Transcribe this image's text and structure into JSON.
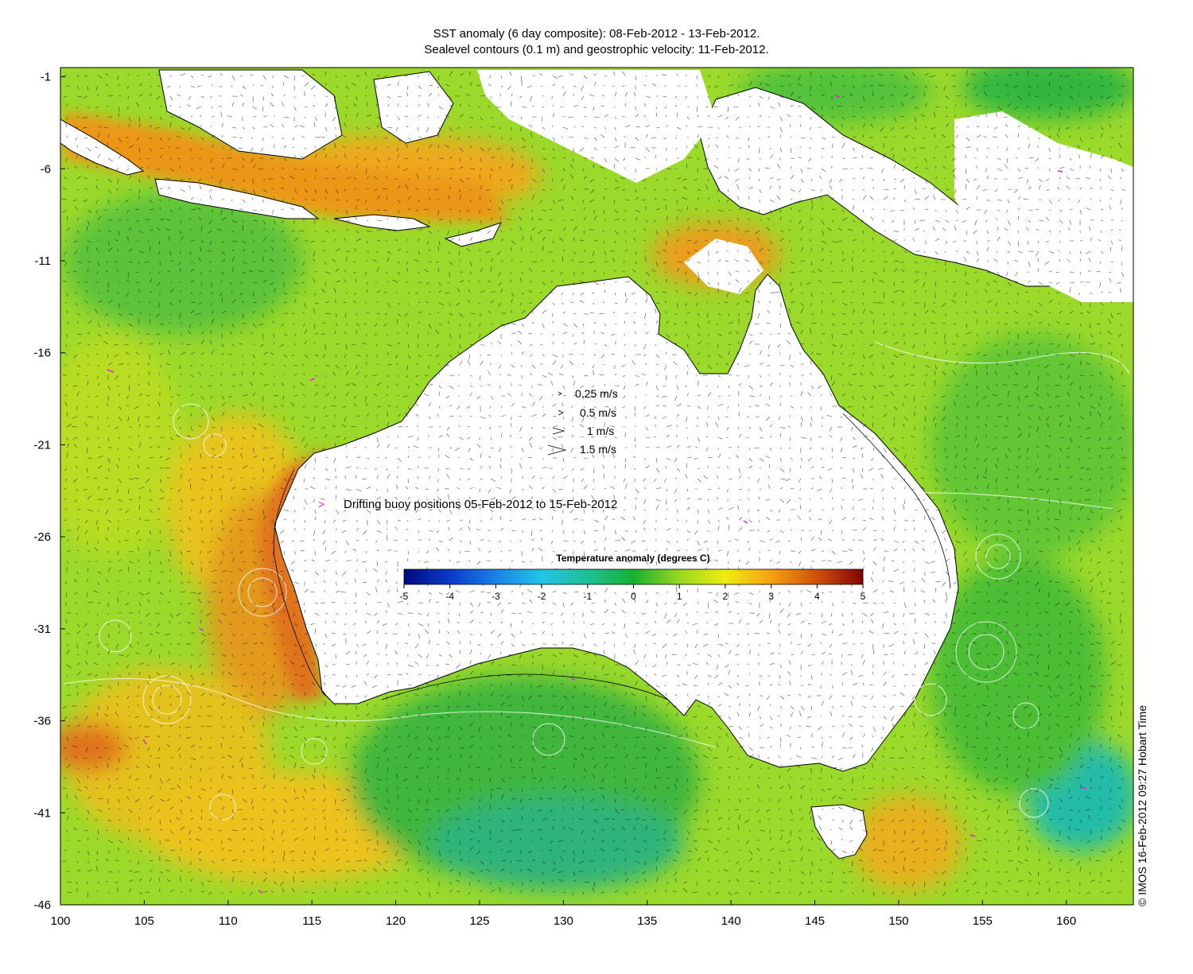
{
  "map": {
    "title_line1": "SST anomaly (6 day composite): 08-Feb-2012 - 13-Feb-2012.",
    "title_line2": "Sealevel contours (0.1 m) and geostrophic velocity: 11-Feb-2012.",
    "credit": "© IMOS 16-Feb-2012 09:27 Hobart Time",
    "lon_ticks": [
      "100",
      "105",
      "110",
      "115",
      "120",
      "125",
      "130",
      "135",
      "140",
      "145",
      "150",
      "155",
      "160"
    ],
    "lat_ticks": [
      "-1",
      "-6",
      "-11",
      "-16",
      "-21",
      "-26",
      "-31",
      "-36",
      "-41",
      "-46"
    ],
    "lon_range": [
      100,
      164
    ],
    "lat_range": [
      -46,
      -0.5
    ],
    "land_color": "#ffffff",
    "ocean_scale_note_colors": [
      "#0a1a8c",
      "#1e5fd8",
      "#25a8e8",
      "#22c2a8",
      "#1fb23a",
      "#8fd22a",
      "#e8e81a",
      "#f4b21a",
      "#e8841a",
      "#c04a14",
      "#8a1010"
    ]
  },
  "velocity_legend": [
    {
      "label": "0.25 m/s"
    },
    {
      "label": "0.5 m/s"
    },
    {
      "label": "1 m/s"
    },
    {
      "label": "1.5 m/s"
    }
  ],
  "buoy_legend": {
    "symbol": ">",
    "label": "Drifting buoy positions 05-Feb-2012 to 15-Feb-2012",
    "color": "#e020e0"
  },
  "colorbar": {
    "title": "Temperature anomaly (degrees C)",
    "ticks": [
      "-5",
      "-4",
      "-3",
      "-2",
      "-1",
      "0",
      "1",
      "2",
      "3",
      "4",
      "5"
    ],
    "range": [
      -5,
      5
    ]
  }
}
